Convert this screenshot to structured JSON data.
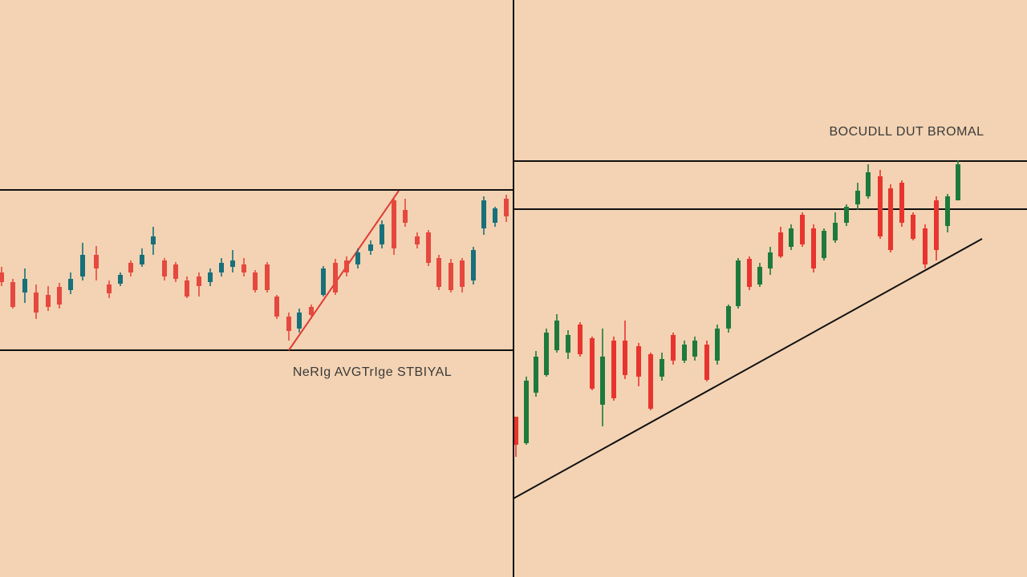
{
  "chart_data": [
    {
      "type": "candlestick",
      "annotation": "NeRIg AVGTrIge STBIYAL",
      "up_color": "#17707a",
      "down_color": "#e5483f",
      "xlim": [
        0,
        640
      ],
      "ylim": [
        0,
        720
      ],
      "x": [
        2,
        16,
        31,
        45,
        60,
        74,
        88,
        103,
        120,
        136,
        150,
        163,
        177,
        191,
        205,
        219,
        233,
        248,
        262,
        276,
        290,
        304,
        318,
        333,
        345,
        360,
        373,
        388,
        403,
        418,
        432,
        446,
        462,
        476,
        491,
        505,
        520,
        534,
        547,
        562,
        576,
        590,
        603,
        617,
        631
      ],
      "open": [
        380,
        368,
        355,
        355,
        352,
        362,
        358,
        375,
        402,
        365,
        366,
        392,
        390,
        415,
        395,
        390,
        370,
        375,
        368,
        380,
        387,
        390,
        380,
        390,
        350,
        325,
        310,
        337,
        352,
        392,
        395,
        390,
        407,
        415,
        470,
        458,
        425,
        430,
        398,
        392,
        395,
        370,
        435,
        442,
        472
      ],
      "high": [
        387,
        372,
        385,
        365,
        363,
        367,
        380,
        417,
        413,
        370,
        380,
        395,
        410,
        437,
        398,
        393,
        375,
        380,
        385,
        398,
        408,
        398,
        383,
        393,
        352,
        330,
        335,
        340,
        388,
        397,
        400,
        410,
        420,
        445,
        475,
        472,
        430,
        433,
        402,
        397,
        398,
        412,
        475,
        462,
        477
      ],
      "low": [
        363,
        335,
        342,
        322,
        332,
        335,
        353,
        370,
        370,
        348,
        363,
        375,
        387,
        402,
        370,
        368,
        348,
        350,
        363,
        375,
        380,
        375,
        355,
        355,
        322,
        295,
        305,
        322,
        350,
        352,
        375,
        385,
        402,
        410,
        402,
        437,
        410,
        388,
        358,
        355,
        355,
        365,
        427,
        437,
        443
      ],
      "close": [
        368,
        337,
        372,
        330,
        337,
        340,
        372,
        402,
        385,
        354,
        377,
        380,
        402,
        425,
        375,
        372,
        350,
        363,
        380,
        392,
        395,
        380,
        358,
        358,
        325,
        307,
        330,
        327,
        385,
        355,
        380,
        405,
        415,
        440,
        410,
        442,
        415,
        392,
        362,
        358,
        362,
        408,
        470,
        460,
        450
      ],
      "levels": [
        483,
        283
      ],
      "trendline": {
        "x": [
          360,
          497
        ],
        "y": [
          283,
          482
        ],
        "color": "#e03a34"
      }
    },
    {
      "type": "candlestick",
      "annotation": "BOCUDLL DUT BROMAL",
      "up_color": "#1d7a3c",
      "down_color": "#e8342f",
      "xlim": [
        0,
        640
      ],
      "ylim": [
        0,
        720
      ],
      "x": [
        3,
        16,
        28,
        41,
        54,
        68,
        83,
        98,
        111,
        125,
        139,
        156,
        171,
        185,
        199,
        213,
        226,
        241,
        254,
        268,
        280,
        294,
        307,
        320,
        333,
        346,
        360,
        374,
        387,
        401,
        415,
        429,
        442,
        457,
        470,
        484,
        498,
        513,
        527,
        541,
        554
      ],
      "open": [
        200,
        167,
        230,
        252,
        283,
        280,
        315,
        298,
        215,
        295,
        295,
        288,
        278,
        250,
        302,
        270,
        275,
        290,
        270,
        310,
        338,
        397,
        365,
        385,
        430,
        412,
        452,
        435,
        398,
        420,
        442,
        465,
        475,
        500,
        485,
        492,
        452,
        435,
        470,
        438,
        470
      ],
      "high": [
        200,
        250,
        282,
        310,
        328,
        308,
        318,
        300,
        310,
        300,
        320,
        292,
        280,
        280,
        305,
        295,
        300,
        295,
        315,
        340,
        398,
        400,
        392,
        412,
        437,
        440,
        455,
        440,
        435,
        455,
        465,
        492,
        515,
        508,
        490,
        495,
        455,
        440,
        475,
        478,
        520
      ],
      "low": [
        150,
        165,
        225,
        250,
        280,
        272,
        275,
        233,
        188,
        220,
        247,
        238,
        208,
        245,
        265,
        267,
        270,
        244,
        265,
        305,
        335,
        358,
        362,
        377,
        398,
        408,
        412,
        380,
        395,
        417,
        438,
        458,
        472,
        422,
        405,
        437,
        420,
        385,
        395,
        430,
        470
      ],
      "close": [
        165,
        245,
        275,
        305,
        320,
        302,
        278,
        235,
        275,
        223,
        252,
        250,
        210,
        272,
        270,
        290,
        295,
        246,
        310,
        338,
        395,
        362,
        387,
        405,
        400,
        435,
        415,
        385,
        432,
        442,
        462,
        482,
        505,
        425,
        408,
        442,
        422,
        390,
        408,
        475,
        515
      ],
      "levels": [
        519,
        459
      ],
      "trendline": {
        "x": [
          0,
          584
        ],
        "y": [
          98,
          422
        ],
        "color": "#111111"
      }
    }
  ]
}
